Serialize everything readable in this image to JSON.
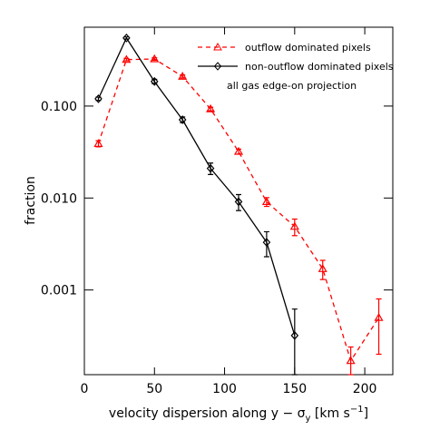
{
  "chart_data": {
    "type": "line",
    "xlabel": [
      "velocity dispersion along y − σ",
      "y",
      " [km s",
      "−1",
      "]"
    ],
    "ylabel": "fraction",
    "annotation": "all gas edge-on projection",
    "x": [
      10,
      30,
      50,
      70,
      90,
      110,
      130,
      150,
      170,
      190,
      210
    ],
    "series": [
      {
        "name": "outflow dominated pixels",
        "color": "#ff0000",
        "dashed": true,
        "marker": "triangle",
        "values": [
          0.039,
          0.32,
          0.325,
          0.21,
          0.093,
          0.032,
          0.0091,
          0.0049,
          0.0017,
          0.00017,
          0.0005
        ],
        "errors": [
          0.003,
          0.01,
          0.01,
          0.008,
          0.004,
          0.002,
          0.001,
          0.001,
          0.0004,
          7e-05,
          0.0003
        ]
      },
      {
        "name": "non-outflow dominated pixels",
        "color": "#000000",
        "dashed": false,
        "marker": "diamond",
        "values": [
          0.12,
          0.55,
          0.185,
          0.071,
          0.021,
          0.0091,
          0.0033,
          0.00032,
          null,
          null,
          null
        ],
        "errors": [
          0.005,
          0.015,
          0.01,
          0.005,
          0.003,
          0.0018,
          0.001,
          0.0003,
          null,
          null,
          null
        ]
      }
    ],
    "xlim": [
      0,
      220
    ],
    "xticks": [
      0,
      50,
      100,
      150,
      200
    ],
    "ylim": [
      0.00012,
      0.72
    ],
    "log_y": true,
    "yticks": [
      {
        "value": 0.1,
        "label": "0.100"
      },
      {
        "value": 0.01,
        "label": "0.010"
      },
      0.001
    ],
    "legend": "upper right"
  }
}
